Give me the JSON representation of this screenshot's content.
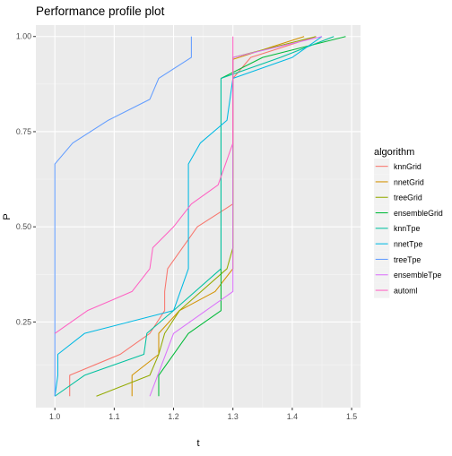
{
  "chart_data": {
    "type": "line",
    "title": "Performance profile plot",
    "xlabel": "t",
    "ylabel": "P",
    "xlim": [
      0.968,
      1.515
    ],
    "ylim": [
      0.025,
      1.03
    ],
    "x_ticks": [
      1.0,
      1.1,
      1.2,
      1.3,
      1.4,
      1.5
    ],
    "x_tick_labels": [
      "1.0",
      "1.1",
      "1.2",
      "1.3",
      "1.4",
      "1.5"
    ],
    "y_ticks": [
      0.25,
      0.5,
      0.75,
      1.0
    ],
    "y_tick_labels": [
      "0.25",
      "0.50",
      "0.75",
      "1.00"
    ],
    "grid": true,
    "legend_title": "algorithm",
    "legend_position": "right",
    "series": [
      {
        "name": "knnGrid",
        "color": "#F8766D",
        "points": [
          [
            1.025,
            0.055
          ],
          [
            1.025,
            0.11
          ],
          [
            1.11,
            0.165
          ],
          [
            1.16,
            0.22
          ],
          [
            1.185,
            0.28
          ],
          [
            1.185,
            0.33
          ],
          [
            1.19,
            0.39
          ],
          [
            1.24,
            0.5
          ],
          [
            1.3,
            0.56
          ],
          [
            1.3,
            0.89
          ],
          [
            1.33,
            0.945
          ],
          [
            1.44,
            1.0
          ]
        ]
      },
      {
        "name": "nnetGrid",
        "color": "#D39200",
        "points": [
          [
            1.13,
            0.055
          ],
          [
            1.13,
            0.11
          ],
          [
            1.175,
            0.165
          ],
          [
            1.175,
            0.22
          ],
          [
            1.21,
            0.28
          ],
          [
            1.27,
            0.33
          ],
          [
            1.3,
            0.39
          ],
          [
            1.3,
            0.94
          ],
          [
            1.42,
            1.0
          ]
        ]
      },
      {
        "name": "treeGrid",
        "color": "#93AA00",
        "points": [
          [
            1.07,
            0.055
          ],
          [
            1.16,
            0.11
          ],
          [
            1.175,
            0.165
          ],
          [
            1.185,
            0.22
          ],
          [
            1.21,
            0.28
          ],
          [
            1.29,
            0.39
          ],
          [
            1.3,
            0.445
          ],
          [
            1.3,
            0.945
          ],
          [
            1.44,
            1.0
          ]
        ]
      },
      {
        "name": "ensembleGrid",
        "color": "#00BA38",
        "points": [
          [
            1.175,
            0.055
          ],
          [
            1.175,
            0.11
          ],
          [
            1.2,
            0.165
          ],
          [
            1.225,
            0.22
          ],
          [
            1.28,
            0.28
          ],
          [
            1.28,
            0.39
          ],
          [
            1.28,
            0.89
          ],
          [
            1.35,
            0.945
          ],
          [
            1.49,
            1.0
          ]
        ]
      },
      {
        "name": "knnTpe",
        "color": "#00C19F",
        "points": [
          [
            1.0,
            0.055
          ],
          [
            1.05,
            0.11
          ],
          [
            1.15,
            0.165
          ],
          [
            1.155,
            0.22
          ],
          [
            1.2,
            0.28
          ],
          [
            1.28,
            0.39
          ],
          [
            1.28,
            0.89
          ],
          [
            1.38,
            0.945
          ],
          [
            1.47,
            1.0
          ]
        ]
      },
      {
        "name": "nnetTpe",
        "color": "#00B9E3",
        "points": [
          [
            1.0,
            0.055
          ],
          [
            1.005,
            0.11
          ],
          [
            1.005,
            0.165
          ],
          [
            1.05,
            0.22
          ],
          [
            1.2,
            0.28
          ],
          [
            1.225,
            0.39
          ],
          [
            1.225,
            0.665
          ],
          [
            1.245,
            0.72
          ],
          [
            1.29,
            0.78
          ],
          [
            1.3,
            0.89
          ],
          [
            1.4,
            0.945
          ],
          [
            1.45,
            1.0
          ]
        ]
      },
      {
        "name": "treeTpe",
        "color": "#619CFF",
        "points": [
          [
            1.0,
            0.055
          ],
          [
            1.0,
            0.665
          ],
          [
            1.03,
            0.72
          ],
          [
            1.09,
            0.78
          ],
          [
            1.16,
            0.835
          ],
          [
            1.175,
            0.89
          ],
          [
            1.23,
            0.945
          ],
          [
            1.23,
            1.0
          ]
        ]
      },
      {
        "name": "ensembleTpe",
        "color": "#DB72FB",
        "points": [
          [
            1.16,
            0.055
          ],
          [
            1.2,
            0.22
          ],
          [
            1.3,
            0.33
          ],
          [
            1.3,
            0.39
          ],
          [
            1.3,
            0.945
          ],
          [
            1.45,
            1.0
          ]
        ]
      },
      {
        "name": "automl",
        "color": "#FF61C3",
        "points": [
          [
            1.0,
            0.22
          ],
          [
            1.055,
            0.28
          ],
          [
            1.13,
            0.33
          ],
          [
            1.16,
            0.39
          ],
          [
            1.165,
            0.445
          ],
          [
            1.2,
            0.5
          ],
          [
            1.23,
            0.56
          ],
          [
            1.275,
            0.61
          ],
          [
            1.3,
            0.72
          ],
          [
            1.3,
            1.0
          ]
        ]
      }
    ]
  }
}
